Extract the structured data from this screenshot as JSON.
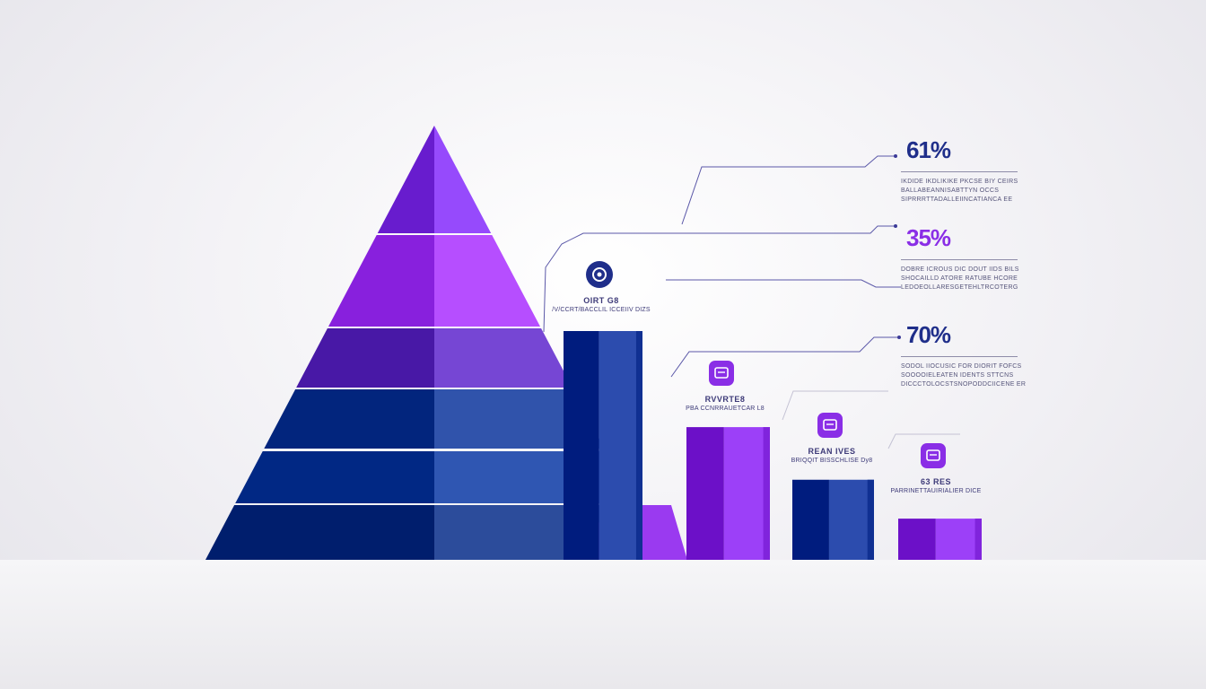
{
  "chart_data": [
    {
      "type": "pyramid",
      "tiers": 6,
      "colors": [
        "#7a2ee0",
        "#9a32ef",
        "#5a2ab8",
        "#14378f",
        "#133a96",
        "#10307f"
      ]
    },
    {
      "type": "bar",
      "title": "",
      "xlabel": "",
      "ylabel": "",
      "categories": [
        "",
        "",
        "",
        ""
      ],
      "values": [
        100,
        58,
        35,
        18
      ],
      "bar_colors": [
        "#1a3a9c",
        "#8a2ee6",
        "#1a3a9c",
        "#8a2ee6"
      ],
      "labels": [
        {
          "title": "OIRT G8",
          "subtitle": "/V/CCRT/BACCLIL ICCEIIV DIZS",
          "icon": "gear-badge-icon",
          "icon_color": "#1f2e8a"
        },
        {
          "title": "RVVRTE8",
          "subtitle": "PBA CCNRRAUETCAR L8",
          "icon": "chat-badge-icon",
          "icon_color": "#8a2ee6"
        },
        {
          "title": "REAN IVES",
          "subtitle": "BRIQQIT BISSCHLISE Dy8",
          "icon": "chart-badge-icon",
          "icon_color": "#8a2ee6"
        },
        {
          "title": "63  RES",
          "subtitle": "PARRINETTAUIRIALIER DICE",
          "icon": "calendar-badge-icon",
          "icon_color": "#8a2ee6"
        }
      ]
    }
  ],
  "stats": [
    {
      "value": "61%",
      "color": "#1f2e8a",
      "lines": [
        "IKDIDE IKDLIKIKE PKCSE BIY CEIRS",
        "BALLABEANNISABTTYN OCCS",
        "SIPRRRTTADALLEIINCATIANCA EE"
      ]
    },
    {
      "value": "35%",
      "color": "#8a2ee6",
      "lines": [
        "DOBRE ICROUS DIC DOUT IIDS BILS",
        "SHOCAILLD ATORE RATUBE HCORE",
        "LEDOEOLLARESGETEHLTRCOTERG"
      ]
    },
    {
      "value": "70%",
      "color": "#1f2e8a",
      "lines": [
        "SODOL IIOCUSIC FOR DIORIT FOFCS",
        "SOOOOIELEATEN IDENTS STTCNS",
        "DICCCTOLOCSTSNOPODDCIICENE ER"
      ]
    }
  ]
}
